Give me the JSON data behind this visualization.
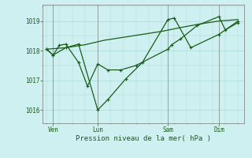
{
  "background_color": "#cff0f0",
  "grid_color": "#aad8d8",
  "line_color": "#1a5c1a",
  "ylabel_ticks": [
    1016,
    1017,
    1018,
    1019
  ],
  "xlabel": "Pression niveau de la mer( hPa )",
  "x_tick_labels": [
    "Ven",
    "Lun",
    "Sam",
    "Dim"
  ],
  "x_tick_positions": [
    0.5,
    4.0,
    9.5,
    13.5
  ],
  "series1_x": [
    0,
    0.5,
    1.0,
    1.5,
    2.5,
    3.2,
    4.0,
    4.8,
    5.8,
    7.0,
    9.5,
    9.8,
    10.5,
    11.8,
    13.5,
    14.0,
    15.0
  ],
  "series1_y": [
    1018.05,
    1017.85,
    1018.18,
    1018.22,
    1017.6,
    1016.8,
    1017.55,
    1017.35,
    1017.35,
    1017.5,
    1018.05,
    1018.2,
    1018.4,
    1018.85,
    1019.15,
    1018.7,
    1018.95
  ],
  "series2_x": [
    0,
    0.5,
    1.5,
    2.5,
    4.0,
    4.8,
    6.2,
    7.5,
    9.5,
    10.0,
    11.3,
    13.5,
    15.0
  ],
  "series2_y": [
    1018.05,
    1017.85,
    1018.1,
    1018.22,
    1016.0,
    1016.35,
    1017.05,
    1017.6,
    1019.05,
    1019.1,
    1018.1,
    1018.55,
    1019.0
  ],
  "series3_x": [
    0,
    1.5,
    3.0,
    4.5,
    6.0,
    7.5,
    9.0,
    10.5,
    12.0,
    13.5,
    15.0
  ],
  "series3_y": [
    1018.05,
    1018.1,
    1018.2,
    1018.35,
    1018.45,
    1018.55,
    1018.65,
    1018.78,
    1018.9,
    1019.0,
    1019.05
  ],
  "xlim": [
    -0.3,
    15.5
  ],
  "ylim": [
    1015.55,
    1019.55
  ],
  "figsize": [
    3.2,
    2.0
  ],
  "dpi": 100
}
